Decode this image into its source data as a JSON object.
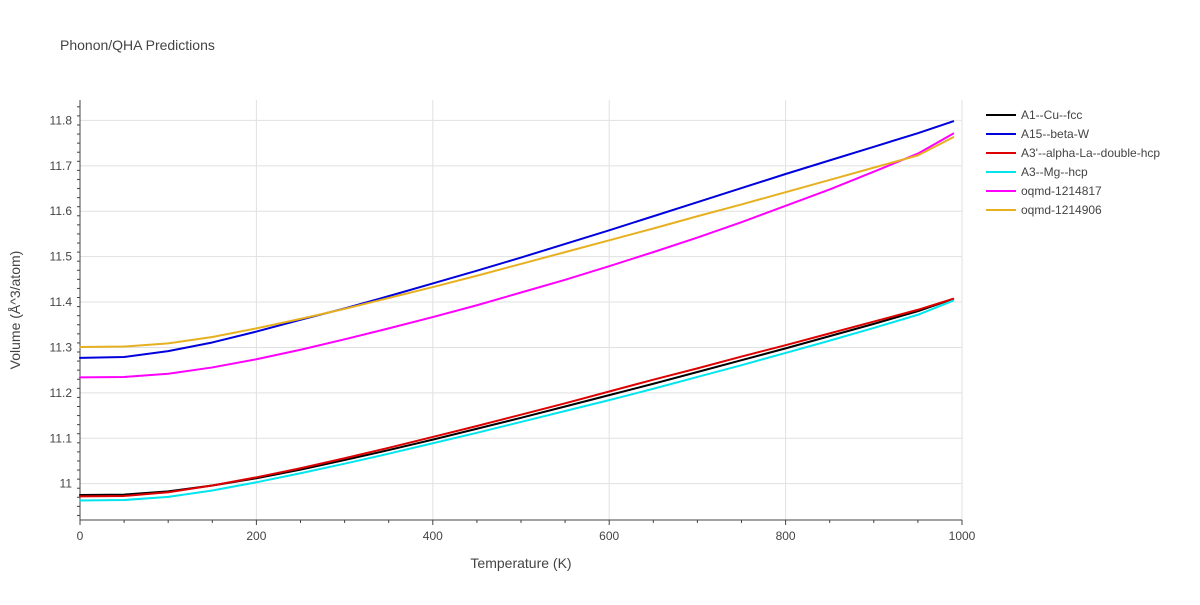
{
  "chart_data": {
    "type": "line",
    "title": "Phonon/QHA Predictions",
    "xlabel": "Temperature (K)",
    "ylabel": "Volume (Å^3/atom)",
    "xlim": [
      0,
      1000
    ],
    "ylim": [
      10.92,
      11.845
    ],
    "xticks": [
      0,
      200,
      400,
      600,
      800,
      1000
    ],
    "xtick_labels": [
      "0",
      "200",
      "400",
      "600",
      "800",
      "1000"
    ],
    "yticks": [
      11.0,
      11.1,
      11.2,
      11.3,
      11.4,
      11.5,
      11.6,
      11.7,
      11.8
    ],
    "ytick_labels": [
      "11",
      "11.1",
      "11.2",
      "11.3",
      "11.4",
      "11.5",
      "11.6",
      "11.7",
      "11.8"
    ],
    "grid": true,
    "legend_position": "top-right",
    "series": [
      {
        "name": "A1--Cu--fcc",
        "color": "#000000",
        "x": [
          0,
          50,
          100,
          150,
          200,
          250,
          300,
          350,
          400,
          450,
          500,
          550,
          600,
          650,
          700,
          750,
          800,
          850,
          900,
          950,
          990
        ],
        "y": [
          10.975,
          10.976,
          10.983,
          10.996,
          11.012,
          11.031,
          11.052,
          11.074,
          11.097,
          11.121,
          11.145,
          11.17,
          11.195,
          11.22,
          11.246,
          11.272,
          11.298,
          11.325,
          11.352,
          11.38,
          11.407
        ]
      },
      {
        "name": "A15--beta-W",
        "color": "#0000dd",
        "x": [
          0,
          50,
          100,
          150,
          200,
          250,
          300,
          350,
          400,
          450,
          500,
          550,
          600,
          650,
          700,
          750,
          800,
          850,
          900,
          950,
          990
        ],
        "y": [
          11.277,
          11.279,
          11.292,
          11.311,
          11.335,
          11.361,
          11.386,
          11.413,
          11.441,
          11.469,
          11.498,
          11.528,
          11.558,
          11.589,
          11.62,
          11.651,
          11.682,
          11.712,
          11.742,
          11.772,
          11.798
        ]
      },
      {
        "name": "A3'--alpha-La--double-hcp",
        "color": "#dd0000",
        "x": [
          0,
          50,
          100,
          150,
          200,
          250,
          300,
          350,
          400,
          450,
          500,
          550,
          600,
          650,
          700,
          750,
          800,
          850,
          900,
          950,
          990
        ],
        "y": [
          10.972,
          10.973,
          10.981,
          10.996,
          11.014,
          11.034,
          11.056,
          11.079,
          11.103,
          11.127,
          11.152,
          11.177,
          11.203,
          11.229,
          11.254,
          11.28,
          11.305,
          11.331,
          11.357,
          11.383,
          11.407
        ]
      },
      {
        "name": "A3--Mg--hcp",
        "color": "#00e5ee",
        "x": [
          0,
          50,
          100,
          150,
          200,
          250,
          300,
          350,
          400,
          450,
          500,
          550,
          600,
          650,
          700,
          750,
          800,
          850,
          900,
          950,
          990
        ],
        "y": [
          10.963,
          10.964,
          10.971,
          10.985,
          11.003,
          11.023,
          11.044,
          11.066,
          11.089,
          11.112,
          11.136,
          11.16,
          11.184,
          11.209,
          11.235,
          11.261,
          11.288,
          11.315,
          11.343,
          11.372,
          11.403
        ]
      },
      {
        "name": "oqmd-1214817",
        "color": "#ff00ff",
        "x": [
          0,
          50,
          100,
          150,
          200,
          250,
          300,
          350,
          400,
          450,
          500,
          550,
          600,
          650,
          700,
          750,
          800,
          850,
          900,
          950,
          990
        ],
        "y": [
          11.234,
          11.235,
          11.242,
          11.256,
          11.274,
          11.295,
          11.318,
          11.342,
          11.367,
          11.393,
          11.421,
          11.449,
          11.479,
          11.51,
          11.542,
          11.576,
          11.612,
          11.648,
          11.687,
          11.727,
          11.771
        ]
      },
      {
        "name": "oqmd-1214906",
        "color": "#e6b020",
        "x": [
          0,
          50,
          100,
          150,
          200,
          250,
          300,
          350,
          400,
          450,
          500,
          550,
          600,
          650,
          700,
          750,
          800,
          850,
          900,
          950,
          990
        ],
        "y": [
          11.301,
          11.302,
          11.309,
          11.323,
          11.342,
          11.363,
          11.385,
          11.409,
          11.433,
          11.458,
          11.484,
          11.51,
          11.536,
          11.562,
          11.589,
          11.615,
          11.642,
          11.669,
          11.696,
          11.723,
          11.763
        ]
      }
    ]
  }
}
